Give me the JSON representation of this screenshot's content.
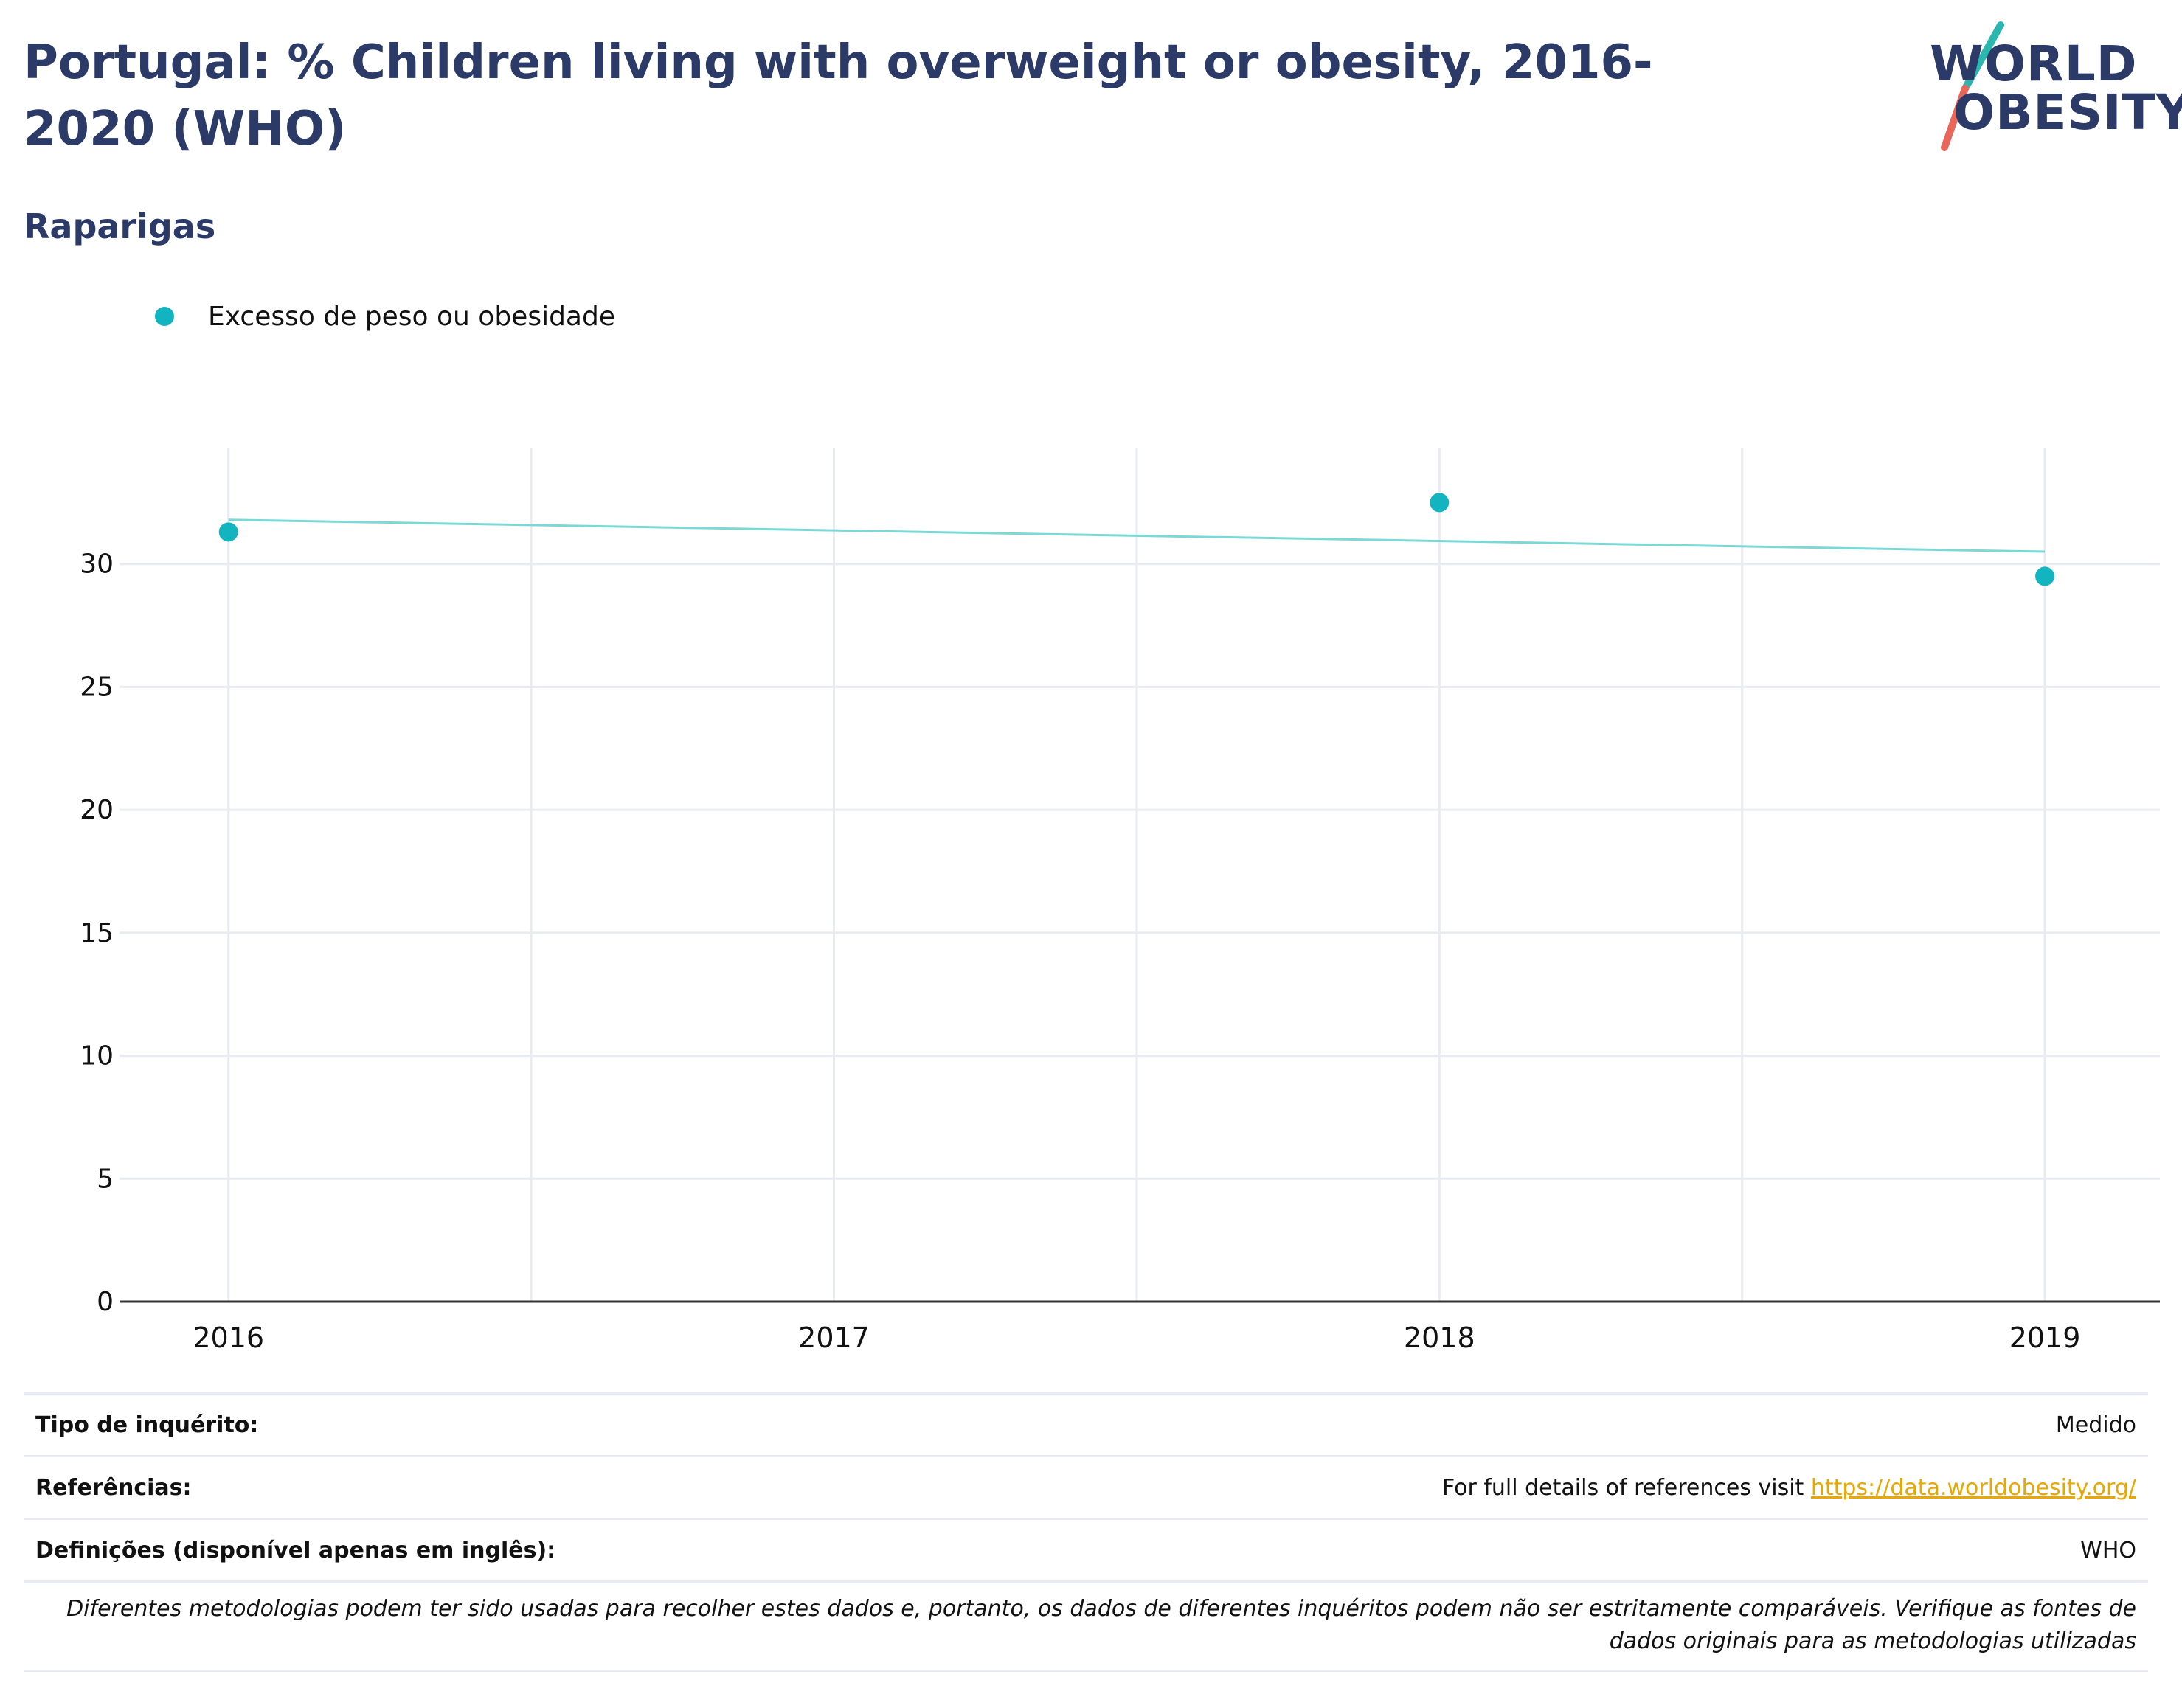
{
  "header": {
    "title": "Portugal: % Children living with overweight or obesity, 2016-2020 (WHO)",
    "subtitle": "Raparigas"
  },
  "logo": {
    "line1": "WORLD",
    "line2": "OBESITY",
    "accent_teal": "#2ab7b0",
    "accent_red": "#e8675a"
  },
  "colors": {
    "title": "#2b3a67",
    "series": "#12b4c0",
    "trend": "#7ad9d6",
    "grid": "#e8ebf0",
    "link": "#e8a800"
  },
  "chart_data": {
    "type": "scatter",
    "x": [
      2016,
      2018,
      2019
    ],
    "series": [
      {
        "name": "Excesso de peso ou obesidade",
        "values": [
          31.3,
          32.5,
          29.5
        ]
      }
    ],
    "trendline": {
      "x": [
        2016,
        2019
      ],
      "y": [
        31.8,
        30.5
      ]
    },
    "xticks": [
      "2016",
      "2017",
      "2018",
      "2019"
    ],
    "yticks": [
      "0",
      "5",
      "10",
      "15",
      "20",
      "25",
      "30"
    ],
    "xlim": [
      2015.82,
      2019.19
    ],
    "ylim": [
      0,
      34.7
    ],
    "grid": true,
    "legend": "top-left",
    "xlabel": "",
    "ylabel": ""
  },
  "footer": {
    "rows": [
      {
        "label": "Tipo de inquérito:",
        "value": "Medido"
      },
      {
        "label": "Referências:",
        "value_prefix": "For full details of references visit ",
        "link": "https://data.worldobesity.org/"
      },
      {
        "label": "Definições (disponível apenas em inglês):",
        "value": "WHO"
      }
    ],
    "note": "Diferentes metodologias podem ter sido usadas para recolher estes dados e, portanto, os dados de diferentes inquéritos podem não ser estritamente comparáveis. Verifique as fontes de dados originais para as metodologias utilizadas"
  }
}
